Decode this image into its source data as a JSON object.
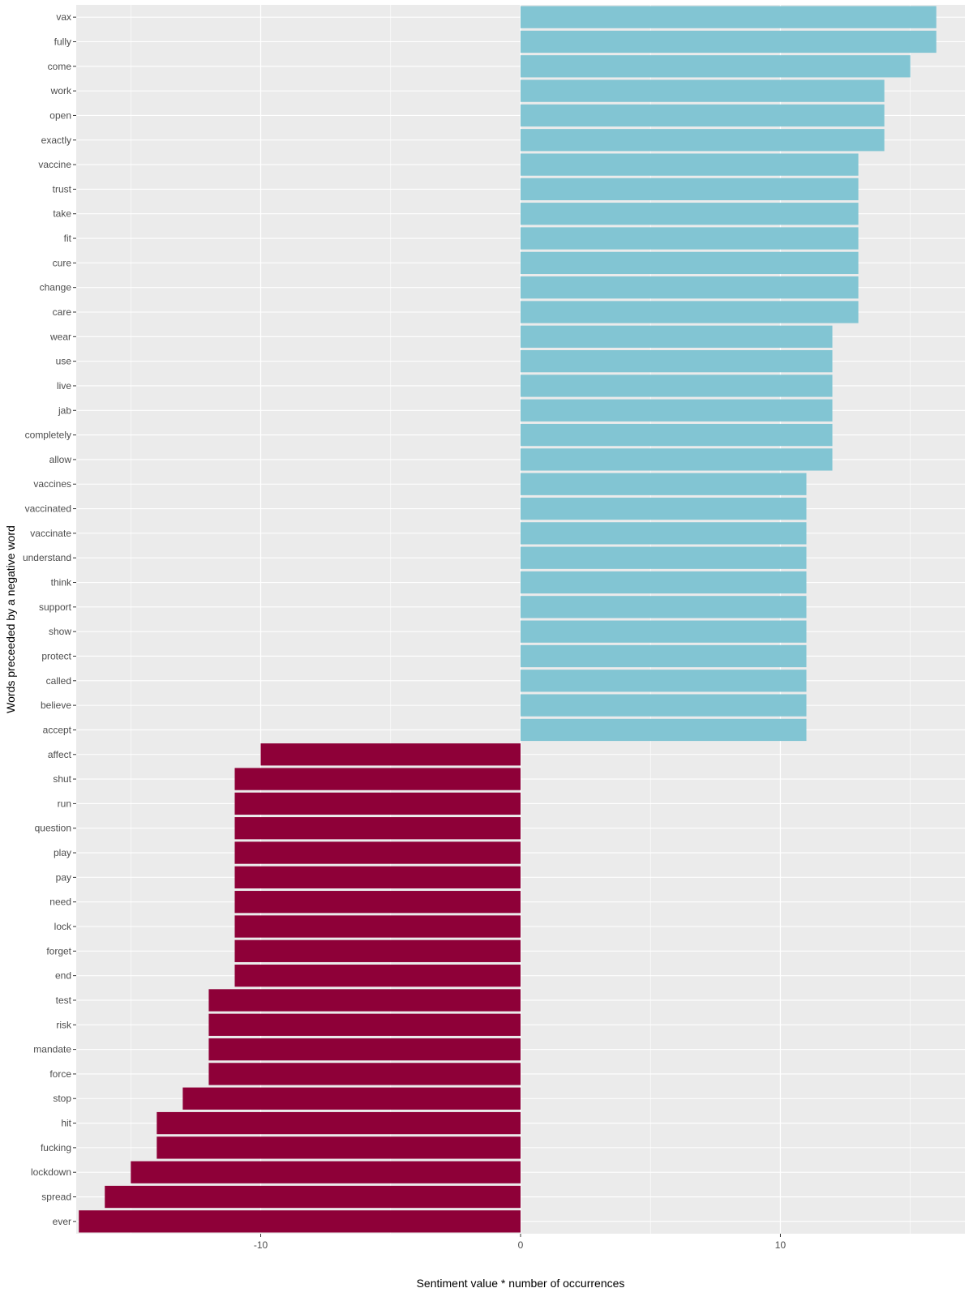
{
  "chart_data": {
    "type": "bar",
    "orientation": "horizontal",
    "xlabel": "Sentiment value * number of occurrences",
    "ylabel": "Words preceeded by a negative word",
    "xlim": [
      -17.1,
      17.1
    ],
    "xticks": [
      -10,
      0,
      10
    ],
    "grid": true,
    "legend": "none",
    "colors": {
      "positive": "#82C5D3",
      "negative": "#8E0038",
      "panel": "#EBEBEB",
      "grid": "#FFFFFF"
    },
    "categories": [
      "vax",
      "fully",
      "come",
      "work",
      "open",
      "exactly",
      "vaccine",
      "trust",
      "take",
      "fit",
      "cure",
      "change",
      "care",
      "wear",
      "use",
      "live",
      "jab",
      "completely",
      "allow",
      "vaccines",
      "vaccinated",
      "vaccinate",
      "understand",
      "think",
      "support",
      "show",
      "protect",
      "called",
      "believe",
      "accept",
      "affect",
      "shut",
      "run",
      "question",
      "play",
      "pay",
      "need",
      "lock",
      "forget",
      "end",
      "test",
      "risk",
      "mandate",
      "force",
      "stop",
      "hit",
      "fucking",
      "lockdown",
      "spread",
      "ever"
    ],
    "values": [
      16,
      16,
      15,
      14,
      14,
      14,
      13,
      13,
      13,
      13,
      13,
      13,
      13,
      12,
      12,
      12,
      12,
      12,
      12,
      11,
      11,
      11,
      11,
      11,
      11,
      11,
      11,
      11,
      11,
      11,
      -10,
      -11,
      -11,
      -11,
      -11,
      -11,
      -11,
      -11,
      -11,
      -11,
      -12,
      -12,
      -12,
      -12,
      -13,
      -14,
      -14,
      -15,
      -16,
      -17
    ]
  }
}
